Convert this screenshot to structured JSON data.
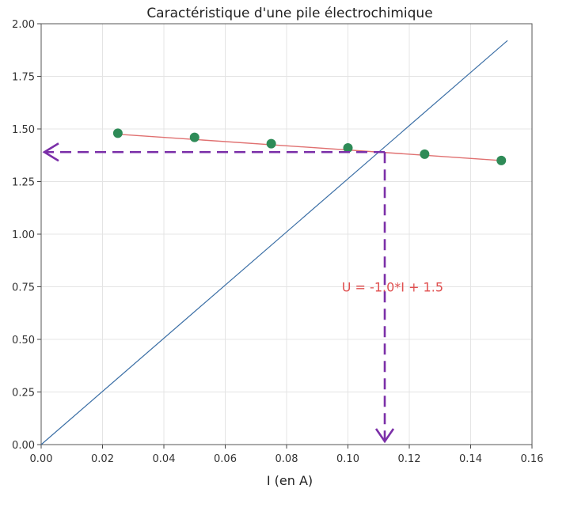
{
  "chart_data": {
    "type": "scatter",
    "title": "Caractéristique d'une pile électrochimique",
    "xlabel": "I (en A)",
    "ylabel": "",
    "xlim": [
      0.0,
      0.16
    ],
    "ylim": [
      0.0,
      2.0
    ],
    "x_ticks": [
      "0.00",
      "0.02",
      "0.04",
      "0.06",
      "0.08",
      "0.10",
      "0.12",
      "0.14",
      "0.16"
    ],
    "y_ticks": [
      "0.00",
      "0.25",
      "0.50",
      "0.75",
      "1.00",
      "1.25",
      "1.50",
      "1.75",
      "2.00"
    ],
    "grid": true,
    "points": [
      {
        "x": 0.025,
        "y": 1.48
      },
      {
        "x": 0.05,
        "y": 1.46
      },
      {
        "x": 0.075,
        "y": 1.43
      },
      {
        "x": 0.1,
        "y": 1.41
      },
      {
        "x": 0.125,
        "y": 1.38
      },
      {
        "x": 0.15,
        "y": 1.35
      }
    ],
    "fit_line": {
      "slope": -1.0,
      "intercept": 1.5,
      "x_range": [
        0.025,
        0.15
      ]
    },
    "diagonal_line": {
      "x": [
        0.0,
        0.152
      ],
      "y": [
        0.0,
        1.92
      ]
    },
    "annotation": "U = -1.0*I + 1.5",
    "annotation_position": {
      "x": 0.098,
      "y": 0.75
    },
    "intersection": {
      "x": 0.112,
      "y": 1.39
    },
    "colors": {
      "points": "#2e8b57",
      "fit": "#e07070",
      "diagonal": "#3a6ea5",
      "arrows": "#7b2fa8",
      "annotation": "#e05050",
      "grid": "#e4e4e4"
    }
  }
}
